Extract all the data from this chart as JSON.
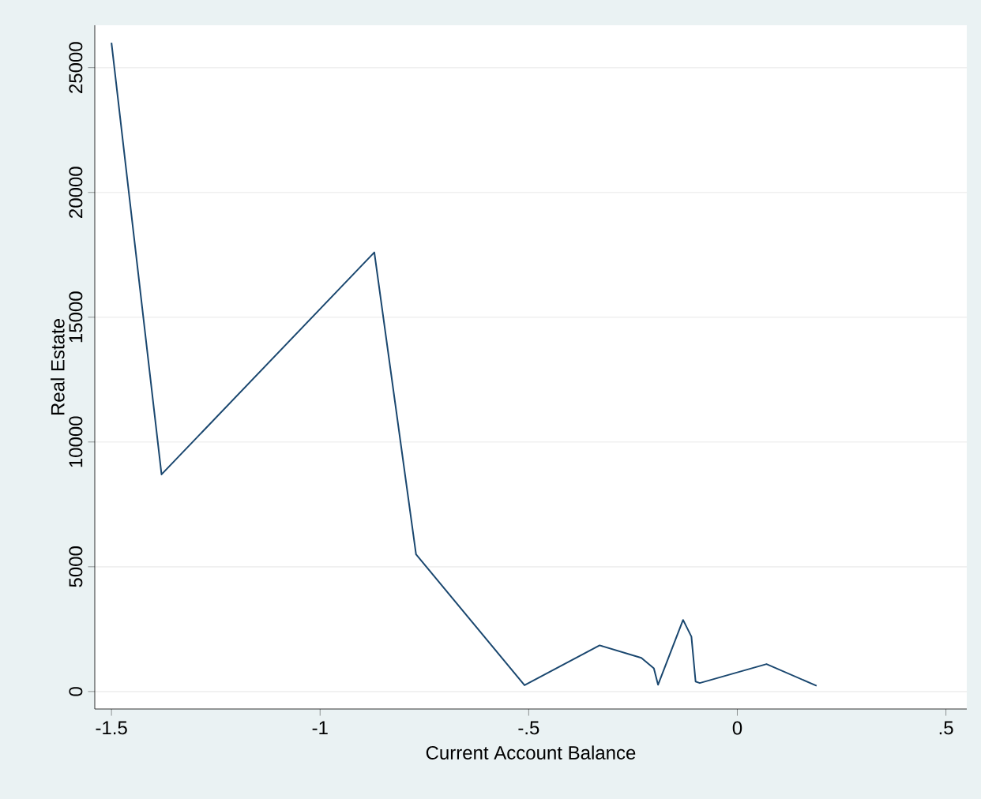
{
  "chart_data": {
    "type": "line",
    "xlabel": "Current Account Balance",
    "ylabel": "Real Estate",
    "x": [
      -1.5,
      -1.38,
      -0.87,
      -0.77,
      -0.51,
      -0.33,
      -0.23,
      -0.2,
      -0.19,
      -0.13,
      -0.11,
      -0.1,
      -0.09,
      0.07,
      0.19
    ],
    "series": [
      {
        "color": "#1a476f",
        "values": [
          26000,
          8700,
          17600,
          5500,
          250,
          1850,
          1350,
          930,
          270,
          2870,
          2200,
          400,
          340,
          1100,
          230
        ]
      }
    ],
    "xlim": [
      -1.54,
      0.55
    ],
    "ylim": [
      -700,
      26700
    ],
    "xticks": [
      {
        "value": -1.5,
        "label": "-1.5"
      },
      {
        "value": -1,
        "label": "-1"
      },
      {
        "value": -0.5,
        "label": "-.5"
      },
      {
        "value": 0,
        "label": "0"
      },
      {
        "value": 0.5,
        "label": ".5"
      }
    ],
    "yticks": [
      0,
      5000,
      10000,
      15000,
      20000,
      25000
    ],
    "grid": "y",
    "line_style": "solid",
    "marker": "none"
  }
}
